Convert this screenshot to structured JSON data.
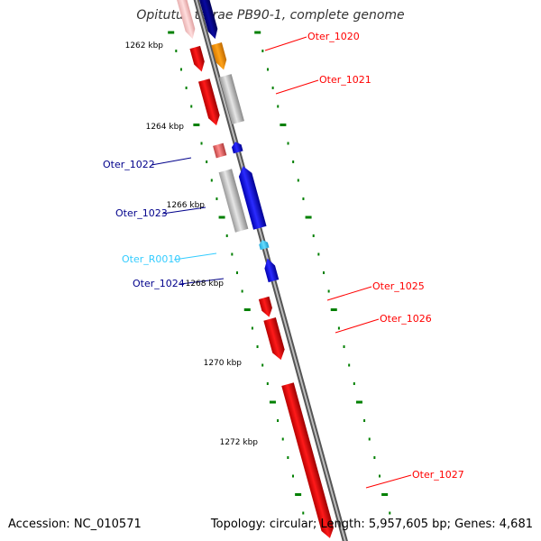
{
  "title": "Opitutus terrae PB90-1, complete genome",
  "footer": {
    "accession": "Accession: NC_010571",
    "summary": "Topology: circular; Length: 5,957,605 bp; Genes: 4,681"
  },
  "colors": {
    "plus_cds": "#ff0000",
    "minus_cds": "#0000ff",
    "rna": "#33ccff",
    "tick": "#008000",
    "hypothetical": "#c0c0c0",
    "highlight": "#ff9900",
    "backbone": "#8c8c8c"
  },
  "ruler": {
    "labels": [
      "1262 kbp",
      "1264 kbp",
      "1266 kbp",
      "1268 kbp",
      "1270 kbp",
      "1272 kbp"
    ]
  },
  "features": [
    {
      "strand": "minus",
      "color": "pink",
      "label": "",
      "label_color": "#00008b"
    },
    {
      "strand": "minus",
      "color": "darkblue",
      "label": "",
      "label_color": "#00008b"
    },
    {
      "strand": "plus",
      "color": "red",
      "label": "Oter_1020",
      "label_color": "#ff0000"
    },
    {
      "strand": "plus",
      "color": "orange",
      "label": "",
      "label_color": "#ff0000"
    },
    {
      "strand": "plus",
      "color": "red",
      "label": "Oter_1021",
      "label_color": "#ff0000"
    },
    {
      "strand": "plus",
      "color": "grey",
      "label": "",
      "label_color": "#ff0000"
    },
    {
      "strand": "minus",
      "color": "salmon",
      "label": "Oter_1022",
      "label_color": "#00008b"
    },
    {
      "strand": "minus",
      "color": "blue",
      "label": "",
      "label_color": "#00008b"
    },
    {
      "strand": "minus",
      "color": "grey",
      "label": "Oter_1023",
      "label_color": "#00008b"
    },
    {
      "strand": "minus",
      "color": "blue",
      "label": "",
      "label_color": "#00008b"
    },
    {
      "strand": "rna",
      "color": "cyan",
      "label": "Oter_R0010",
      "label_color": "#33ccff"
    },
    {
      "strand": "minus",
      "color": "blue",
      "label": "Oter_1024",
      "label_color": "#00008b"
    },
    {
      "strand": "plus",
      "color": "red",
      "label": "Oter_1025",
      "label_color": "#ff0000"
    },
    {
      "strand": "plus",
      "color": "red",
      "label": "Oter_1026",
      "label_color": "#ff0000"
    },
    {
      "strand": "plus",
      "color": "red",
      "label": "Oter_1027",
      "label_color": "#ff0000"
    }
  ]
}
